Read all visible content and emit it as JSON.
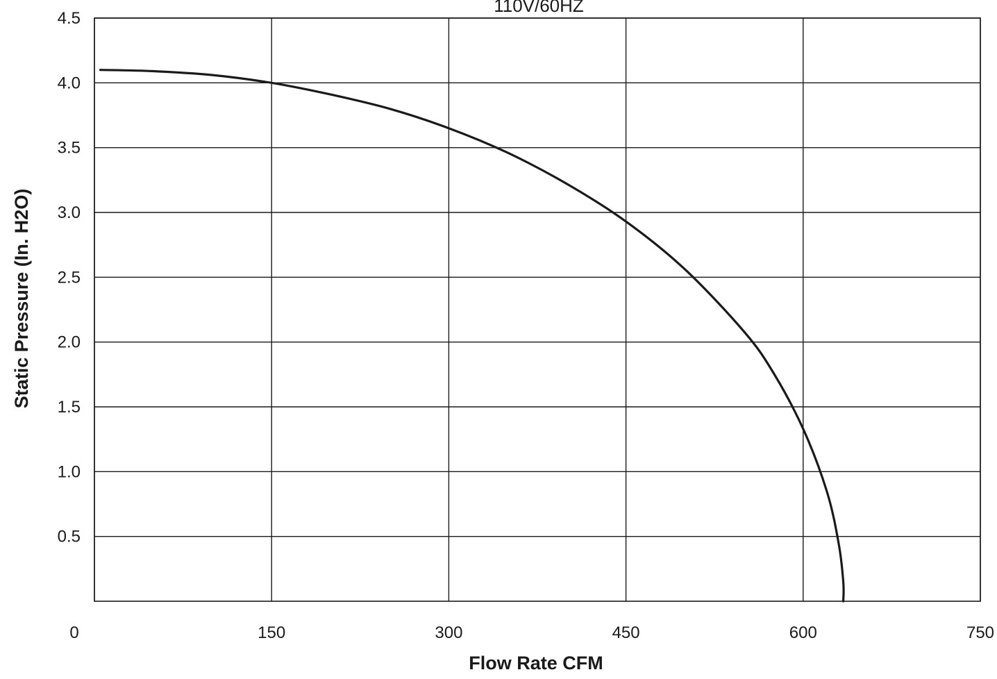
{
  "chart_data": {
    "type": "line",
    "title": "110V/60HZ",
    "xlabel": "Flow Rate CFM",
    "ylabel": "Static Pressure (In. H2O)",
    "xlim": [
      0,
      750
    ],
    "ylim": [
      0,
      4.5
    ],
    "grid": true,
    "x_ticks": [
      "0",
      "150",
      "300",
      "450",
      "600",
      "750"
    ],
    "y_ticks": [
      "0.5",
      "1.0",
      "1.5",
      "2.0",
      "2.5",
      "3.0",
      "3.5",
      "4.0",
      "4.5"
    ],
    "colors": {
      "curve": "#1a1a1a",
      "grid": "#1a1a1a"
    },
    "series": [
      {
        "x": [
          5,
          50,
          100,
          150,
          200,
          250,
          300,
          350,
          400,
          450,
          500,
          550,
          575,
          600,
          620,
          630,
          634,
          634
        ],
        "y": [
          4.1,
          4.09,
          4.06,
          4.0,
          3.91,
          3.8,
          3.65,
          3.46,
          3.22,
          2.93,
          2.56,
          2.08,
          1.76,
          1.33,
          0.85,
          0.45,
          0.15,
          0.0
        ]
      }
    ]
  }
}
